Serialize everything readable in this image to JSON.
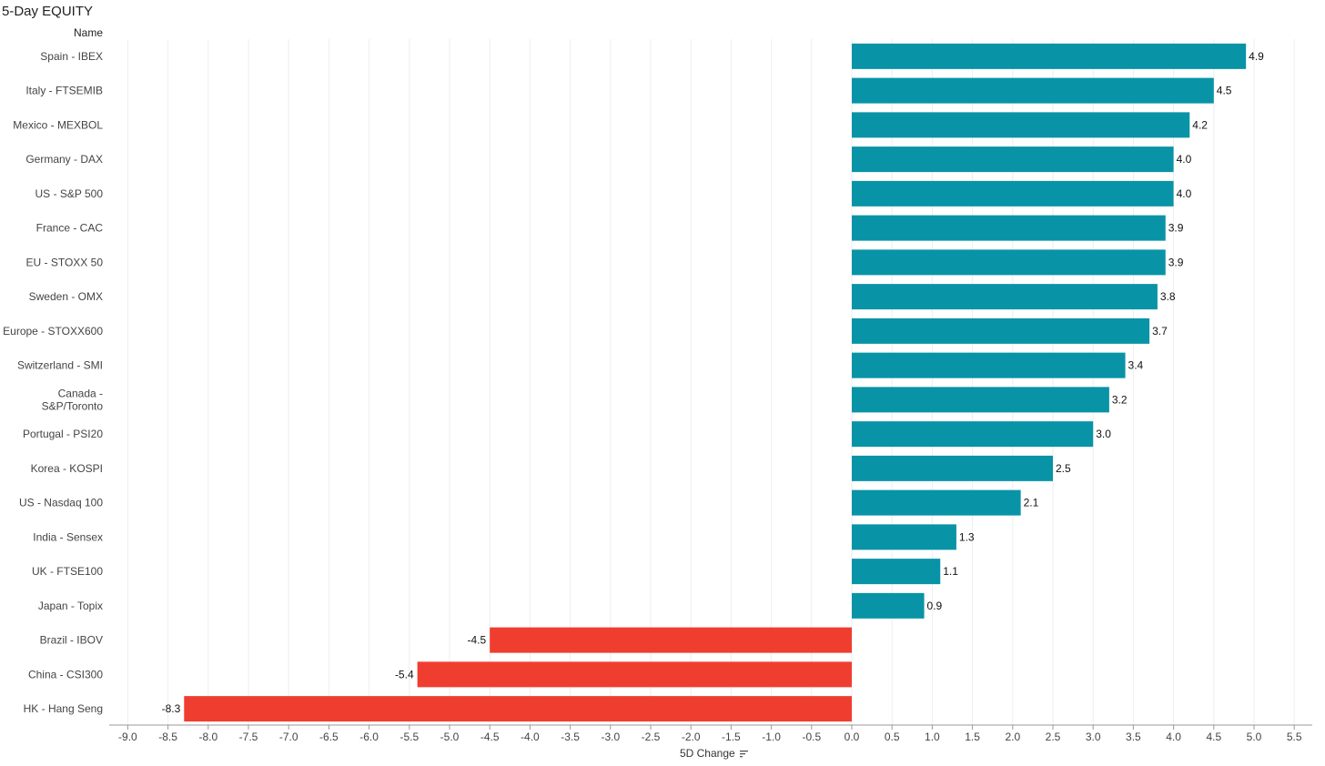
{
  "title": "5-Day EQUITY",
  "row_header": "Name",
  "chart_data": {
    "type": "bar",
    "orientation": "horizontal",
    "title": "5-Day EQUITY",
    "ylabel": "Name",
    "xlabel": "5D Change",
    "xlim": [
      -9.25,
      5.75
    ],
    "x_ticks": [
      -9.0,
      -8.5,
      -8.0,
      -7.5,
      -7.0,
      -6.5,
      -6.0,
      -5.5,
      -5.0,
      -4.5,
      -4.0,
      -3.5,
      -3.0,
      -2.5,
      -2.0,
      -1.5,
      -1.0,
      -0.5,
      0.0,
      0.5,
      1.0,
      1.5,
      2.0,
      2.5,
      3.0,
      3.5,
      4.0,
      4.5,
      5.0,
      5.5
    ],
    "grid": true,
    "categories": [
      "Spain - IBEX",
      "Italy - FTSEMIB",
      "Mexico - MEXBOL",
      "Germany - DAX",
      "US - S&P 500",
      "France - CAC",
      "EU - STOXX 50",
      "Sweden - OMX",
      "Europe - STOXX600",
      "Switzerland - SMI",
      "Canada - S&P/Toronto",
      "Portugal - PSI20",
      "Korea - KOSPI",
      "US - Nasdaq 100",
      "India - Sensex",
      "UK - FTSE100",
      "Japan - Topix",
      "Brazil - IBOV",
      "China - CSI300",
      "HK - Hang Seng"
    ],
    "category_display_lines": [
      [
        "Spain - IBEX"
      ],
      [
        "Italy - FTSEMIB"
      ],
      [
        "Mexico - MEXBOL"
      ],
      [
        "Germany - DAX"
      ],
      [
        "US - S&P 500"
      ],
      [
        "France - CAC"
      ],
      [
        "EU - STOXX 50"
      ],
      [
        "Sweden - OMX"
      ],
      [
        "Europe - STOXX600"
      ],
      [
        "Switzerland - SMI"
      ],
      [
        "Canada -",
        "S&P/Toronto"
      ],
      [
        "Portugal - PSI20"
      ],
      [
        "Korea - KOSPI"
      ],
      [
        "US - Nasdaq 100"
      ],
      [
        "India - Sensex"
      ],
      [
        "UK - FTSE100"
      ],
      [
        "Japan - Topix"
      ],
      [
        "Brazil - IBOV"
      ],
      [
        "China - CSI300"
      ],
      [
        "HK - Hang Seng"
      ]
    ],
    "values": [
      4.9,
      4.5,
      4.2,
      4.0,
      4.0,
      3.9,
      3.9,
      3.8,
      3.7,
      3.4,
      3.2,
      3.0,
      2.5,
      2.1,
      1.3,
      1.1,
      0.9,
      -4.5,
      -5.4,
      -8.3
    ],
    "colors": {
      "positive": "#0894a6",
      "negative": "#ef3e30",
      "grid": "#eeeeee"
    }
  }
}
